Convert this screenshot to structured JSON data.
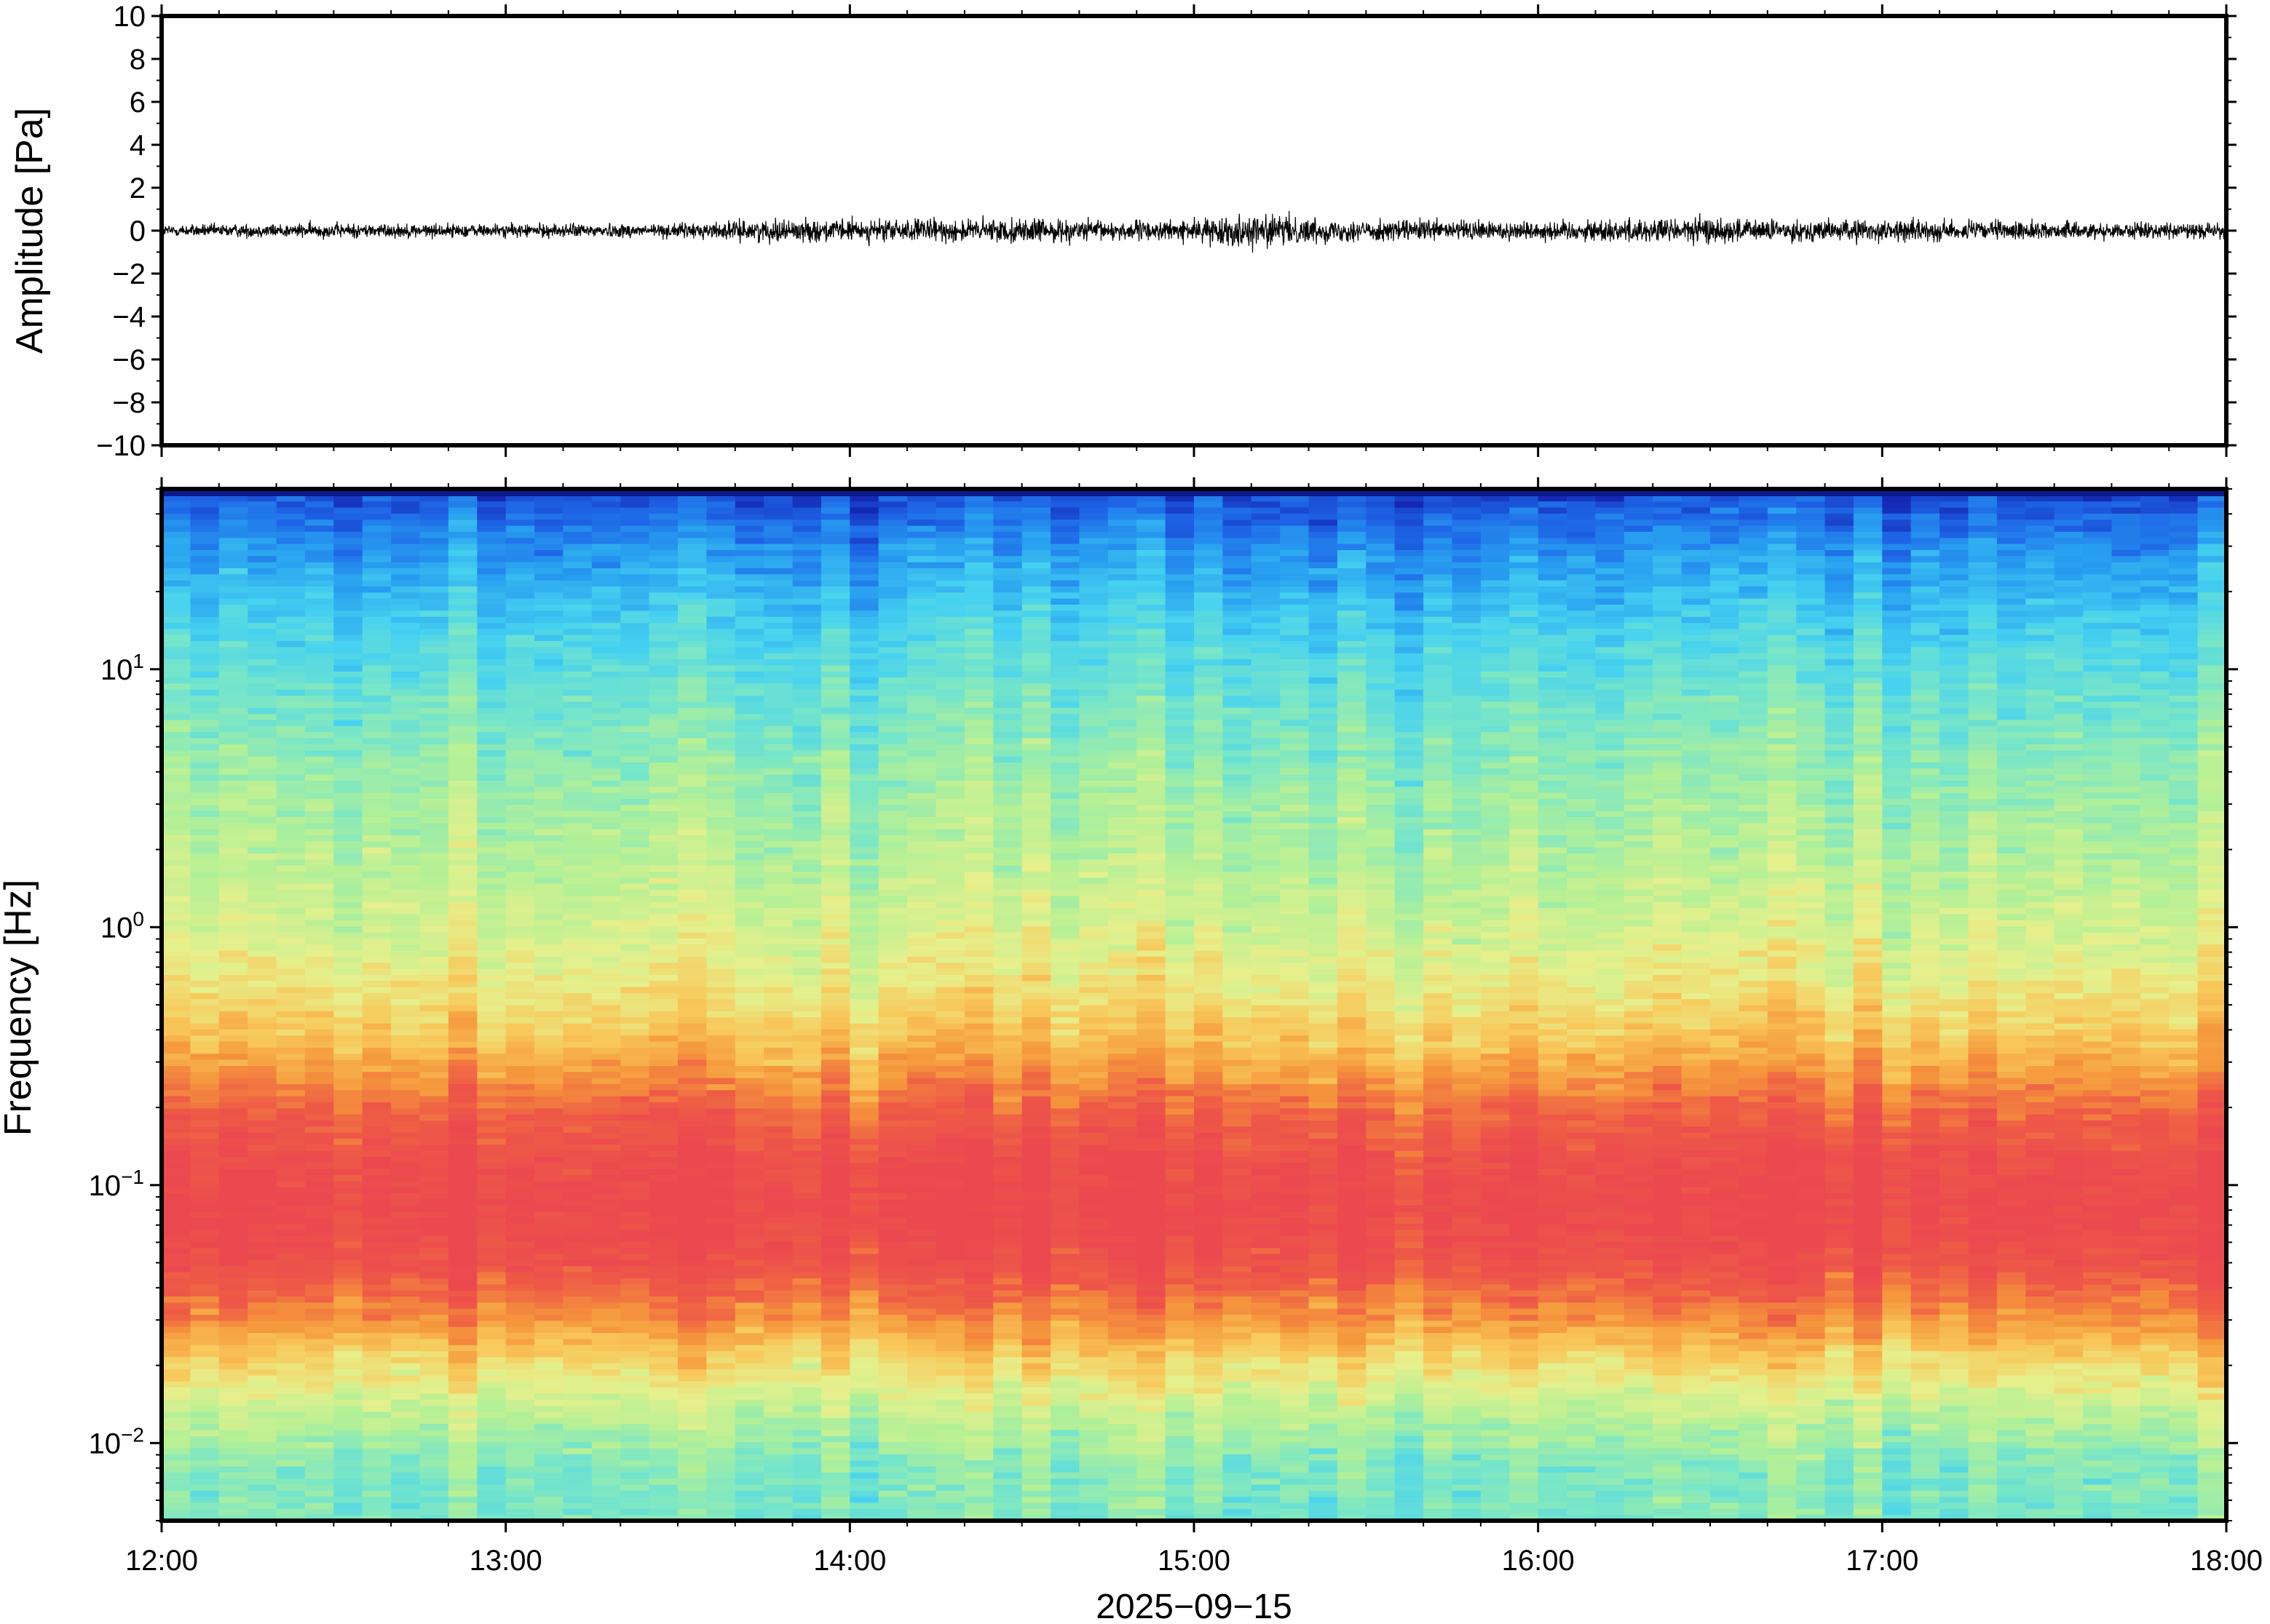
{
  "chart_data": [
    {
      "type": "line",
      "panel": "waveform",
      "ylabel": "Amplitude [Pa]",
      "xlim": [
        "12:00",
        "18:00"
      ],
      "ylim": [
        -10,
        10
      ],
      "yticks": [
        10,
        8,
        6,
        4,
        2,
        0,
        -2,
        -4,
        -6,
        -8,
        -10
      ],
      "ytick_labels": [
        "10",
        "8",
        "6",
        "4",
        "2",
        "0",
        "−2",
        "−4",
        "−6",
        "−8",
        "−10"
      ],
      "series": [
        {
          "color": "#000000",
          "envelope_x_hours": [
            12.0,
            12.5,
            13.0,
            13.5,
            13.8,
            14.0,
            14.3,
            14.5,
            14.8,
            15.0,
            15.17,
            15.4,
            15.8,
            16.0,
            16.3,
            16.5,
            16.7,
            17.0,
            17.5,
            18.0
          ],
          "envelope_amplitude_pa": [
            0.5,
            0.6,
            0.55,
            0.6,
            0.9,
            0.9,
            0.95,
            1.0,
            0.8,
            0.85,
            1.4,
            0.9,
            0.85,
            0.8,
            1.0,
            1.1,
            0.85,
            0.9,
            0.7,
            0.6
          ]
        }
      ]
    },
    {
      "type": "heatmap",
      "panel": "spectrogram",
      "ylabel": "Frequency [Hz]",
      "xlabel": "2025−09−15",
      "yscale": "log",
      "ylim": [
        0.005,
        50
      ],
      "yticks": [
        10,
        1,
        0.1,
        0.01
      ],
      "ytick_labels": [
        {
          "base": "10",
          "exp": "1"
        },
        {
          "base": "10",
          "exp": "0"
        },
        {
          "base": "10",
          "exp": "−1"
        },
        {
          "base": "10",
          "exp": "−2"
        }
      ],
      "xticks": [
        "12:00",
        "13:00",
        "14:00",
        "15:00",
        "16:00",
        "17:00",
        "18:00"
      ],
      "colormap": [
        "#1428b4",
        "#1e64e6",
        "#28a0f0",
        "#46d2f0",
        "#78e6c8",
        "#b4f096",
        "#e6f08c",
        "#f8c85a",
        "#f5963c",
        "#ee5a46",
        "#ec4850"
      ],
      "power_profile": {
        "freq_hz": [
          0.005,
          0.008,
          0.012,
          0.02,
          0.03,
          0.05,
          0.08,
          0.12,
          0.2,
          0.35,
          0.6,
          1.0,
          2.0,
          4.0,
          8.0,
          15.0,
          30.0,
          50.0
        ],
        "relative_level": [
          0.4,
          0.42,
          0.5,
          0.65,
          0.8,
          0.95,
          1.0,
          0.97,
          0.88,
          0.72,
          0.62,
          0.56,
          0.5,
          0.45,
          0.38,
          0.3,
          0.18,
          0.05
        ]
      }
    }
  ]
}
